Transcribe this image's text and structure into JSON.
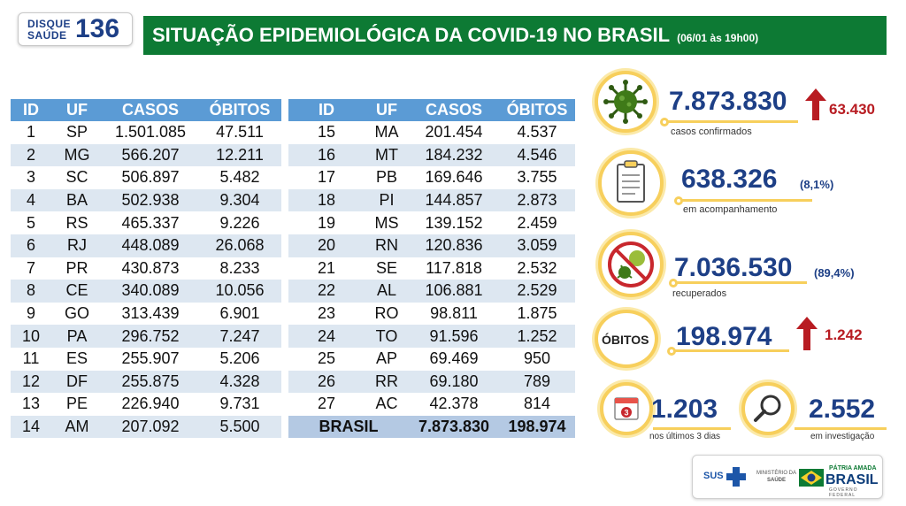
{
  "header": {
    "logo_line1": "DISQUE",
    "logo_line2": "SAÚDE",
    "logo_number": "136",
    "title": "SITUAÇÃO EPIDEMIOLÓGICA DA COVID-19 NO BRASIL",
    "date": "(06/01 às 19h00)",
    "bar_color": "#0d7a34"
  },
  "table": {
    "headers": [
      "ID",
      "UF",
      "CASOS",
      "ÓBITOS"
    ],
    "left": [
      [
        "1",
        "SP",
        "1.501.085",
        "47.511"
      ],
      [
        "2",
        "MG",
        "566.207",
        "12.211"
      ],
      [
        "3",
        "SC",
        "506.897",
        "5.482"
      ],
      [
        "4",
        "BA",
        "502.938",
        "9.304"
      ],
      [
        "5",
        "RS",
        "465.337",
        "9.226"
      ],
      [
        "6",
        "RJ",
        "448.089",
        "26.068"
      ],
      [
        "7",
        "PR",
        "430.873",
        "8.233"
      ],
      [
        "8",
        "CE",
        "340.089",
        "10.056"
      ],
      [
        "9",
        "GO",
        "313.439",
        "6.901"
      ],
      [
        "10",
        "PA",
        "296.752",
        "7.247"
      ],
      [
        "11",
        "ES",
        "255.907",
        "5.206"
      ],
      [
        "12",
        "DF",
        "255.875",
        "4.328"
      ],
      [
        "13",
        "PE",
        "226.940",
        "9.731"
      ],
      [
        "14",
        "AM",
        "207.092",
        "5.500"
      ]
    ],
    "right": [
      [
        "15",
        "MA",
        "201.454",
        "4.537"
      ],
      [
        "16",
        "MT",
        "184.232",
        "4.546"
      ],
      [
        "17",
        "PB",
        "169.646",
        "3.755"
      ],
      [
        "18",
        "PI",
        "144.857",
        "2.873"
      ],
      [
        "19",
        "MS",
        "139.152",
        "2.459"
      ],
      [
        "20",
        "RN",
        "120.836",
        "3.059"
      ],
      [
        "21",
        "SE",
        "117.818",
        "2.532"
      ],
      [
        "22",
        "AL",
        "106.881",
        "2.529"
      ],
      [
        "23",
        "RO",
        "98.811",
        "1.875"
      ],
      [
        "24",
        "TO",
        "91.596",
        "1.252"
      ],
      [
        "25",
        "AP",
        "69.469",
        "950"
      ],
      [
        "26",
        "RR",
        "69.180",
        "789"
      ],
      [
        "27",
        "AC",
        "42.378",
        "814"
      ]
    ],
    "total": {
      "label": "BRASIL",
      "casos": "7.873.830",
      "obitos": "198.974"
    },
    "header_color": "#5b9bd5",
    "stripe_color": "#dde7f1",
    "total_color": "#b4c9e3"
  },
  "indicators": {
    "confirmados": {
      "value": "7.873.830",
      "increase": "63.430",
      "label": "casos confirmados",
      "icon": "virus-icon"
    },
    "acompanhamento": {
      "value": "638.326",
      "pct": "(8,1%)",
      "label": "em acompanhamento",
      "icon": "clipboard-icon"
    },
    "recuperados": {
      "value": "7.036.530",
      "pct": "(89,4%)",
      "label": "recuperados",
      "icon": "crossed-virus-icon"
    },
    "obitos": {
      "circle_label": "ÓBITOS",
      "value": "198.974",
      "increase": "1.242"
    },
    "ultimos": {
      "value": "1.203",
      "label": "nos últimos 3 dias",
      "icon": "calendar-icon",
      "calendar_number": "3"
    },
    "investigacao": {
      "value": "2.552",
      "label": "em investigação",
      "icon": "magnifier-icon"
    },
    "ring_color": "#f7cf5c",
    "number_color": "#1d3f86",
    "arrow_color": "#b81c22"
  },
  "footer": {
    "sus": "SUS",
    "ministerio_line1": "MINISTÉRIO DA",
    "ministerio_line2": "SAÚDE",
    "patria": "PÁTRIA AMADA",
    "brasil": "BRASIL",
    "governo": "GOVERNO FEDERAL"
  }
}
